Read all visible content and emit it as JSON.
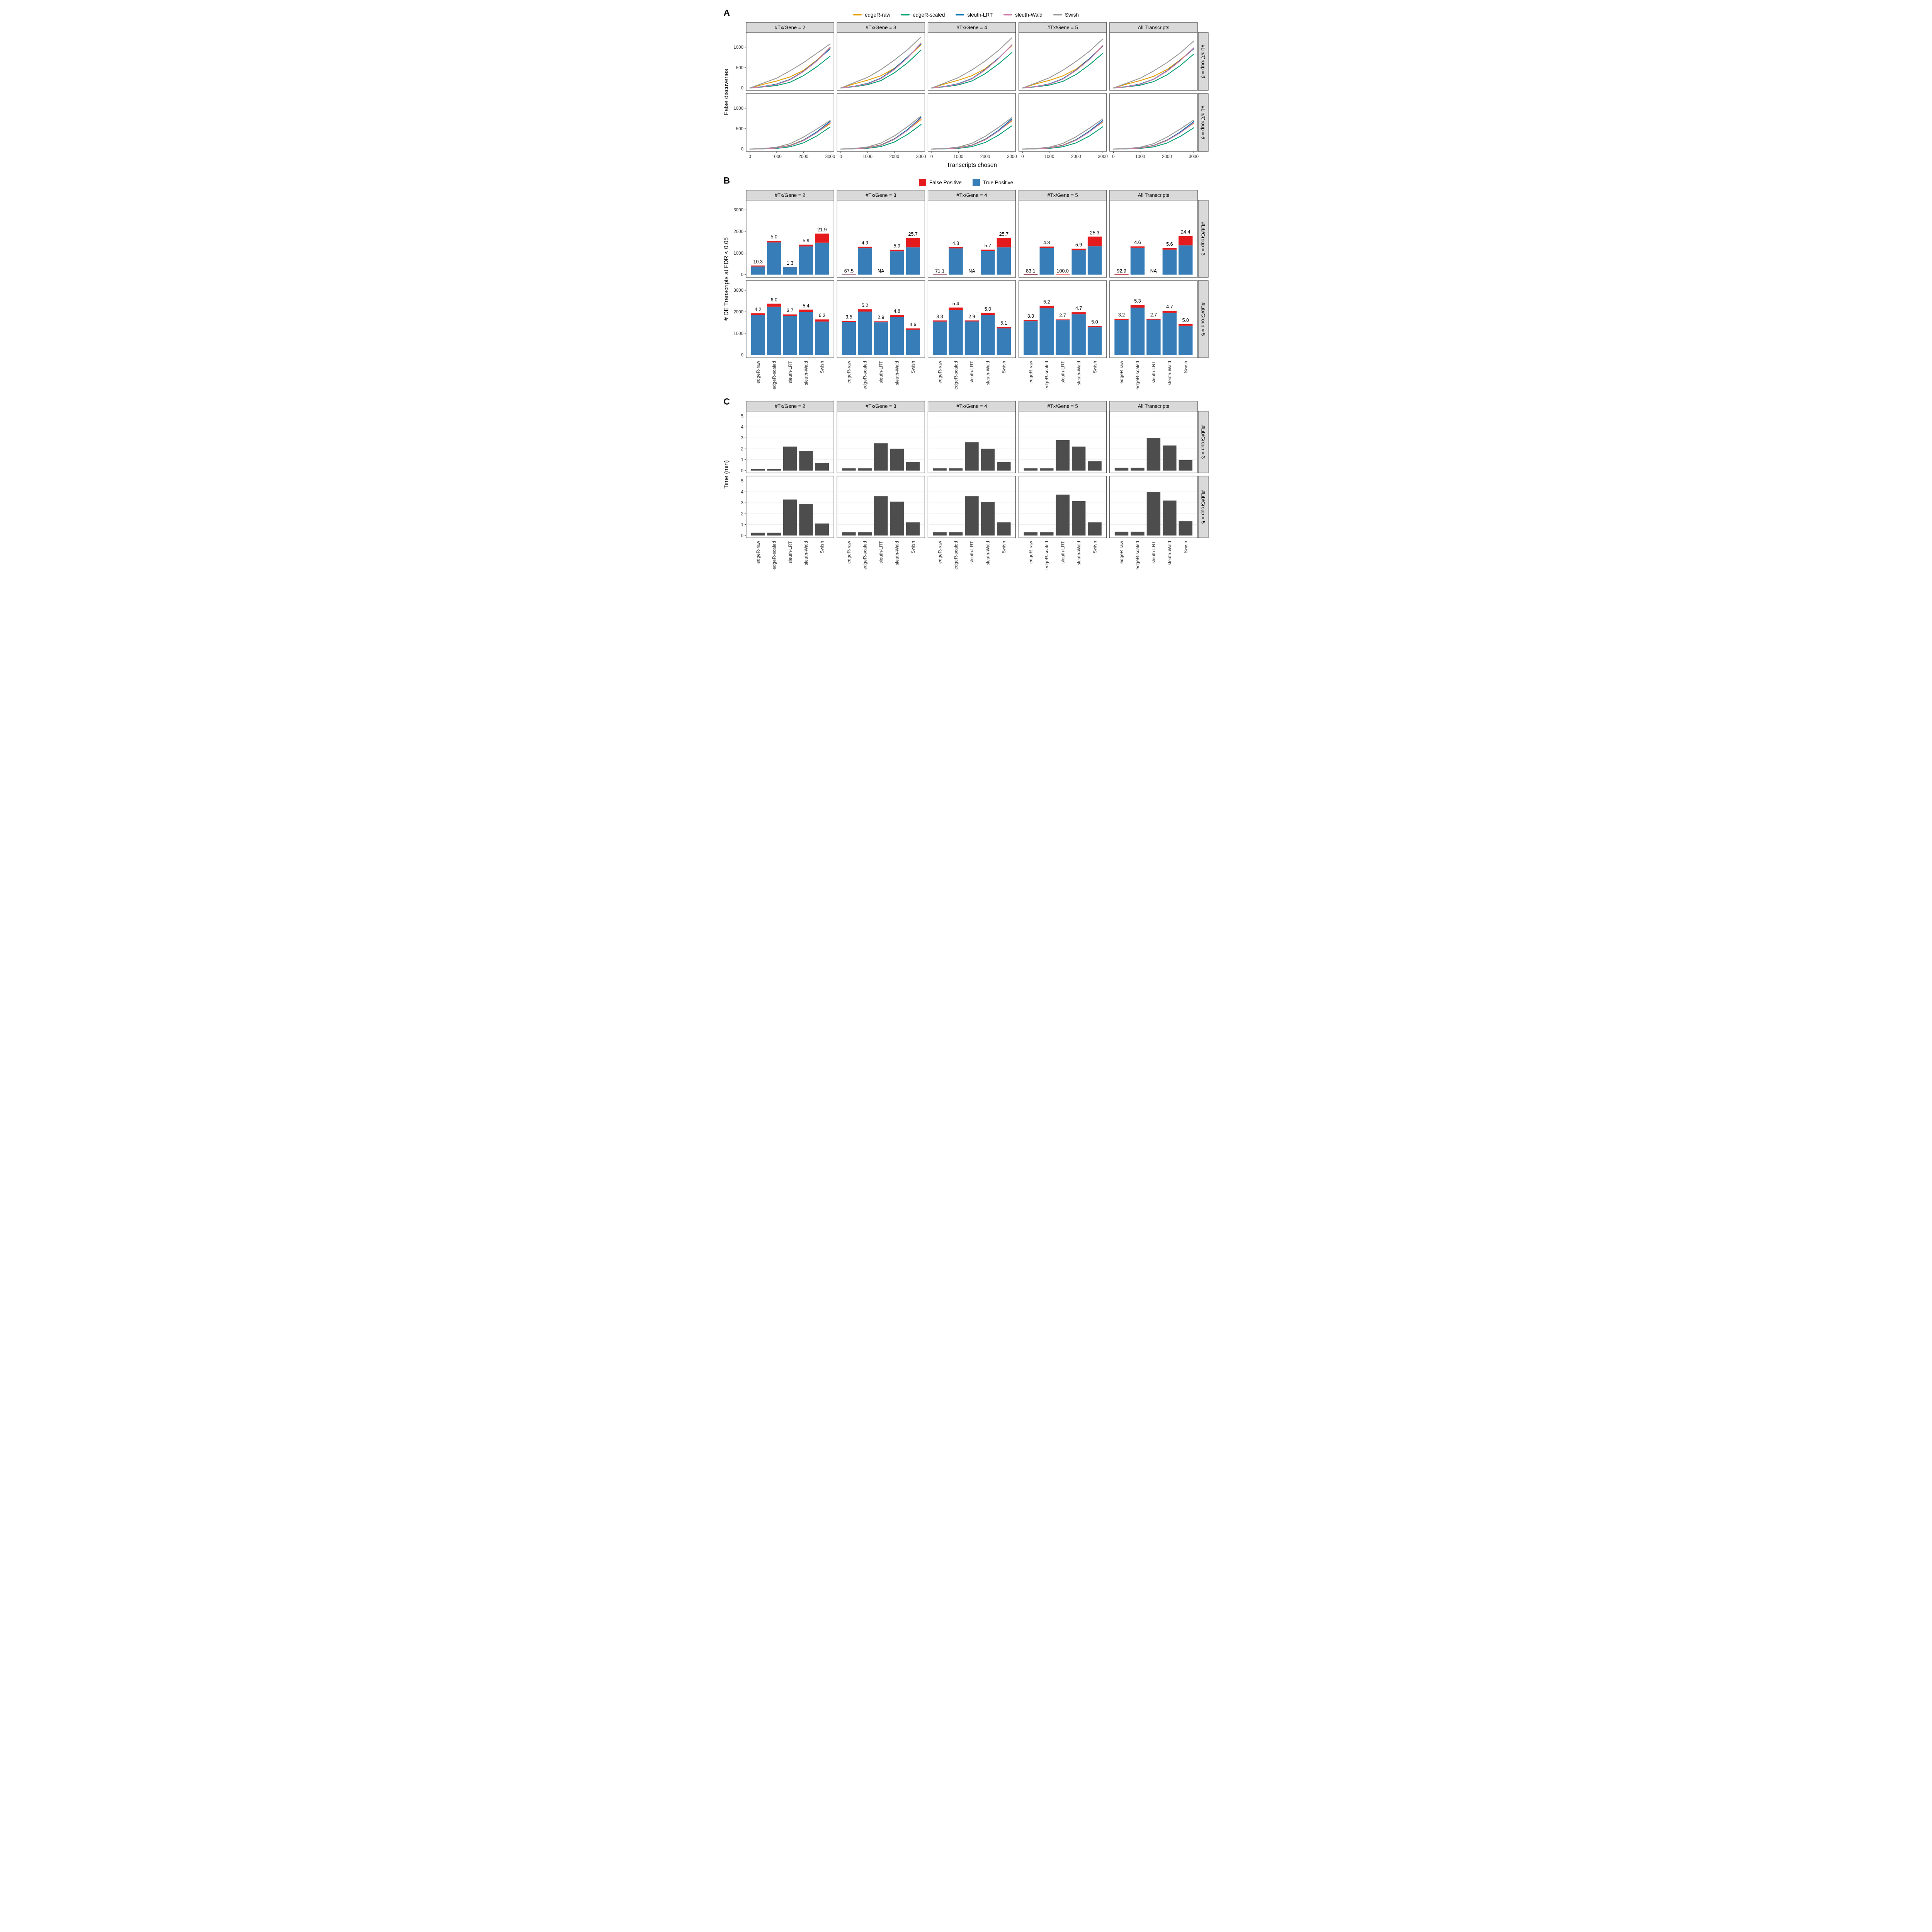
{
  "chart_data": [
    {
      "id": "A",
      "type": "line",
      "panel_label": "A",
      "xlabel": "Transcripts chosen",
      "ylabel": "False discoveries",
      "col_facets": [
        "#Tx/Gene = 2",
        "#Tx/Gene = 3",
        "#Tx/Gene = 4",
        "#Tx/Gene = 5",
        "All Transcripts"
      ],
      "row_facets": [
        "#Lib/Group = 3",
        "#Lib/Group = 5"
      ],
      "legend": [
        {
          "name": "edgeR-raw",
          "color": "#E69F00"
        },
        {
          "name": "edgeR-scaled",
          "color": "#009E73"
        },
        {
          "name": "sleuth-LRT",
          "color": "#0072B2"
        },
        {
          "name": "sleuth-Wald",
          "color": "#CC79A7"
        },
        {
          "name": "Swish",
          "color": "#999999"
        }
      ],
      "x": [
        0,
        500,
        1000,
        1500,
        2000,
        2500,
        3000
      ],
      "xticks": [
        0,
        1000,
        2000,
        3000
      ],
      "yticks": [
        0,
        500,
        1000
      ],
      "ylim": [
        0,
        1300
      ],
      "grid": false,
      "legend_position": "top",
      "facets": [
        {
          "row": 0,
          "col": 0,
          "series": [
            [
              0,
              90,
              170,
              270,
              430,
              680,
              990
            ],
            [
              0,
              25,
              60,
              140,
              300,
              520,
              780
            ],
            [
              0,
              35,
              95,
              210,
              410,
              670,
              960
            ],
            [
              0,
              30,
              85,
              200,
              400,
              660,
              1000
            ],
            [
              0,
              120,
              240,
              420,
              620,
              850,
              1080
            ]
          ]
        },
        {
          "row": 0,
          "col": 1,
          "series": [
            [
              0,
              100,
              190,
              300,
              480,
              750,
              1060
            ],
            [
              0,
              30,
              80,
              180,
              370,
              620,
              930
            ],
            [
              0,
              40,
              110,
              240,
              470,
              760,
              1080
            ],
            [
              0,
              35,
              100,
              230,
              450,
              740,
              1100
            ],
            [
              0,
              130,
              260,
              450,
              680,
              940,
              1250
            ]
          ]
        },
        {
          "row": 0,
          "col": 2,
          "series": [
            [
              0,
              100,
              190,
              300,
              470,
              730,
              1040
            ],
            [
              0,
              28,
              75,
              170,
              350,
              590,
              870
            ],
            [
              0,
              38,
              105,
              230,
              450,
              730,
              1050
            ],
            [
              0,
              33,
              95,
              220,
              440,
              720,
              1060
            ],
            [
              0,
              125,
              255,
              440,
              660,
              920,
              1230
            ]
          ]
        },
        {
          "row": 0,
          "col": 3,
          "series": [
            [
              0,
              100,
              185,
              295,
              460,
              720,
              1020
            ],
            [
              0,
              27,
              70,
              160,
              330,
              570,
              850
            ],
            [
              0,
              36,
              100,
              225,
              440,
              720,
              1030
            ],
            [
              0,
              32,
              92,
              215,
              430,
              700,
              1040
            ],
            [
              0,
              122,
              250,
              430,
              650,
              900,
              1200
            ]
          ]
        },
        {
          "row": 0,
          "col": 4,
          "series": [
            [
              0,
              95,
              180,
              285,
              450,
              690,
              970
            ],
            [
              0,
              26,
              68,
              155,
              320,
              550,
              830
            ],
            [
              0,
              35,
              98,
              215,
              420,
              680,
              960
            ],
            [
              0,
              31,
              90,
              210,
              410,
              670,
              980
            ],
            [
              0,
              118,
              240,
              415,
              620,
              860,
              1150
            ]
          ]
        },
        {
          "row": 1,
          "col": 0,
          "series": [
            [
              0,
              8,
              30,
              90,
              220,
              410,
              620
            ],
            [
              0,
              4,
              15,
              55,
              150,
              320,
              540
            ],
            [
              0,
              6,
              25,
              85,
              215,
              420,
              680
            ],
            [
              0,
              5,
              22,
              80,
              205,
              400,
              650
            ],
            [
              0,
              12,
              45,
              130,
              290,
              490,
              700
            ]
          ]
        },
        {
          "row": 1,
          "col": 1,
          "series": [
            [
              0,
              9,
              35,
              100,
              250,
              470,
              720
            ],
            [
              0,
              4,
              17,
              60,
              170,
              360,
              600
            ],
            [
              0,
              7,
              28,
              95,
              245,
              480,
              780
            ],
            [
              0,
              6,
              25,
              90,
              235,
              460,
              760
            ],
            [
              0,
              14,
              50,
              145,
              320,
              550,
              810
            ]
          ]
        },
        {
          "row": 1,
          "col": 2,
          "series": [
            [
              0,
              9,
              33,
              95,
              240,
              450,
              690
            ],
            [
              0,
              4,
              16,
              58,
              160,
              340,
              570
            ],
            [
              0,
              7,
              27,
              92,
              235,
              460,
              740
            ],
            [
              0,
              6,
              24,
              87,
              225,
              440,
              710
            ],
            [
              0,
              13,
              48,
              140,
              310,
              530,
              770
            ]
          ]
        },
        {
          "row": 1,
          "col": 3,
          "series": [
            [
              0,
              8,
              31,
              92,
              230,
              430,
              660
            ],
            [
              0,
              4,
              15,
              55,
              150,
              320,
              545
            ],
            [
              0,
              6,
              26,
              88,
              225,
              440,
              700
            ],
            [
              0,
              5,
              23,
              83,
              215,
              420,
              670
            ],
            [
              0,
              12,
              46,
              135,
              300,
              510,
              740
            ]
          ]
        },
        {
          "row": 1,
          "col": 4,
          "series": [
            [
              0,
              8,
              30,
              88,
              220,
              410,
              630
            ],
            [
              0,
              4,
              14,
              52,
              145,
              310,
              520
            ],
            [
              0,
              6,
              25,
              85,
              215,
              420,
              670
            ],
            [
              0,
              5,
              22,
              80,
              205,
              400,
              640
            ],
            [
              0,
              12,
              44,
              130,
              290,
              490,
              710
            ]
          ]
        }
      ]
    },
    {
      "id": "B",
      "type": "bar-stacked",
      "panel_label": "B",
      "xlabel": "",
      "ylabel": "# DE Transcripts at FDR < 0.05",
      "col_facets": [
        "#Tx/Gene = 2",
        "#Tx/Gene = 3",
        "#Tx/Gene = 4",
        "#Tx/Gene = 5",
        "All Transcripts"
      ],
      "row_facets": [
        "#Lib/Group = 3",
        "#Lib/Group = 5"
      ],
      "legend": [
        {
          "name": "False Positive",
          "color": "#E41A1C"
        },
        {
          "name": "True Positive",
          "color": "#377EB8"
        }
      ],
      "categories": [
        "edgeR-raw",
        "edgeR-scaled",
        "sleuth-LRT",
        "sleuth-Wald",
        "Swish"
      ],
      "yticks": [
        0,
        1000,
        2000,
        3000
      ],
      "ylim": [
        0,
        3300
      ],
      "note": "bar value labels are FDR percentages; fp = total * label / 100",
      "facets": [
        {
          "row": 0,
          "col": 0,
          "bars": [
            {
              "label": "10.3",
              "total": 420
            },
            {
              "label": "5.0",
              "total": 1570
            },
            {
              "label": "1.3",
              "total": 350
            },
            {
              "label": "5.9",
              "total": 1390
            },
            {
              "label": "21.9",
              "total": 1900
            }
          ]
        },
        {
          "row": 0,
          "col": 1,
          "bars": [
            {
              "label": "67.5",
              "total": 25
            },
            {
              "label": "4.9",
              "total": 1290
            },
            {
              "label": "NA",
              "total": 0
            },
            {
              "label": "5.9",
              "total": 1150
            },
            {
              "label": "25.7",
              "total": 1700
            }
          ]
        },
        {
          "row": 0,
          "col": 2,
          "bars": [
            {
              "label": "71.1",
              "total": 25
            },
            {
              "label": "4.3",
              "total": 1270
            },
            {
              "label": "NA",
              "total": 0
            },
            {
              "label": "5.7",
              "total": 1160
            },
            {
              "label": "25.7",
              "total": 1700
            }
          ]
        },
        {
          "row": 0,
          "col": 3,
          "bars": [
            {
              "label": "83.1",
              "total": 20
            },
            {
              "label": "4.8",
              "total": 1300
            },
            {
              "label": "100.0",
              "total": 10
            },
            {
              "label": "5.9",
              "total": 1200
            },
            {
              "label": "25.3",
              "total": 1760
            }
          ]
        },
        {
          "row": 0,
          "col": 4,
          "bars": [
            {
              "label": "92.9",
              "total": 15
            },
            {
              "label": "4.6",
              "total": 1310
            },
            {
              "label": "NA",
              "total": 0
            },
            {
              "label": "5.6",
              "total": 1230
            },
            {
              "label": "24.4",
              "total": 1790
            }
          ]
        },
        {
          "row": 1,
          "col": 0,
          "bars": [
            {
              "label": "4.2",
              "total": 1930
            },
            {
              "label": "6.0",
              "total": 2380
            },
            {
              "label": "3.7",
              "total": 1880
            },
            {
              "label": "5.4",
              "total": 2100
            },
            {
              "label": "6.2",
              "total": 1650
            }
          ]
        },
        {
          "row": 1,
          "col": 1,
          "bars": [
            {
              "label": "3.5",
              "total": 1580
            },
            {
              "label": "5.2",
              "total": 2120
            },
            {
              "label": "2.9",
              "total": 1560
            },
            {
              "label": "4.8",
              "total": 1850
            },
            {
              "label": "4.6",
              "total": 1230
            }
          ]
        },
        {
          "row": 1,
          "col": 2,
          "bars": [
            {
              "label": "3.3",
              "total": 1600
            },
            {
              "label": "5.4",
              "total": 2200
            },
            {
              "label": "2.9",
              "total": 1600
            },
            {
              "label": "5.0",
              "total": 1950
            },
            {
              "label": "5.1",
              "total": 1300
            }
          ]
        },
        {
          "row": 1,
          "col": 3,
          "bars": [
            {
              "label": "3.3",
              "total": 1620
            },
            {
              "label": "5.2",
              "total": 2280
            },
            {
              "label": "2.7",
              "total": 1650
            },
            {
              "label": "4.7",
              "total": 1980
            },
            {
              "label": "5.0",
              "total": 1350
            }
          ]
        },
        {
          "row": 1,
          "col": 4,
          "bars": [
            {
              "label": "3.2",
              "total": 1680
            },
            {
              "label": "5.3",
              "total": 2320
            },
            {
              "label": "2.7",
              "total": 1680
            },
            {
              "label": "4.7",
              "total": 2050
            },
            {
              "label": "5.0",
              "total": 1430
            }
          ]
        }
      ]
    },
    {
      "id": "C",
      "type": "bar",
      "panel_label": "C",
      "xlabel": "",
      "ylabel": "Time (min)",
      "bar_color": "#4D4D4D",
      "col_facets": [
        "#Tx/Gene = 2",
        "#Tx/Gene = 3",
        "#Tx/Gene = 4",
        "#Tx/Gene = 5",
        "All Transcripts"
      ],
      "row_facets": [
        "#Lib/Group = 3",
        "#Lib/Group = 5"
      ],
      "categories": [
        "edgeR-raw",
        "edgeR-scaled",
        "sleuth-LRT",
        "sleuth-Wald",
        "Swish"
      ],
      "yticks": [
        0,
        1,
        2,
        3,
        4,
        5
      ],
      "ylim": [
        0,
        5.4
      ],
      "grid": true,
      "facets": [
        {
          "row": 0,
          "col": 0,
          "values": [
            0.15,
            0.15,
            2.2,
            1.8,
            0.7
          ]
        },
        {
          "row": 0,
          "col": 1,
          "values": [
            0.2,
            0.2,
            2.5,
            2.0,
            0.8
          ]
        },
        {
          "row": 0,
          "col": 2,
          "values": [
            0.2,
            0.2,
            2.6,
            2.0,
            0.8
          ]
        },
        {
          "row": 0,
          "col": 3,
          "values": [
            0.2,
            0.2,
            2.8,
            2.2,
            0.85
          ]
        },
        {
          "row": 0,
          "col": 4,
          "values": [
            0.25,
            0.25,
            3.0,
            2.3,
            0.95
          ]
        },
        {
          "row": 1,
          "col": 0,
          "values": [
            0.25,
            0.25,
            3.3,
            2.9,
            1.1
          ]
        },
        {
          "row": 1,
          "col": 1,
          "values": [
            0.3,
            0.3,
            3.6,
            3.1,
            1.2
          ]
        },
        {
          "row": 1,
          "col": 2,
          "values": [
            0.3,
            0.3,
            3.6,
            3.05,
            1.2
          ]
        },
        {
          "row": 1,
          "col": 3,
          "values": [
            0.3,
            0.3,
            3.75,
            3.15,
            1.2
          ]
        },
        {
          "row": 1,
          "col": 4,
          "values": [
            0.35,
            0.35,
            4.0,
            3.2,
            1.3
          ]
        }
      ]
    }
  ],
  "style": {
    "strip_fill": "#D9D9D9",
    "panel_border": "#333333",
    "grid_color": "#EBEBEB",
    "tick_color": "#333333"
  }
}
